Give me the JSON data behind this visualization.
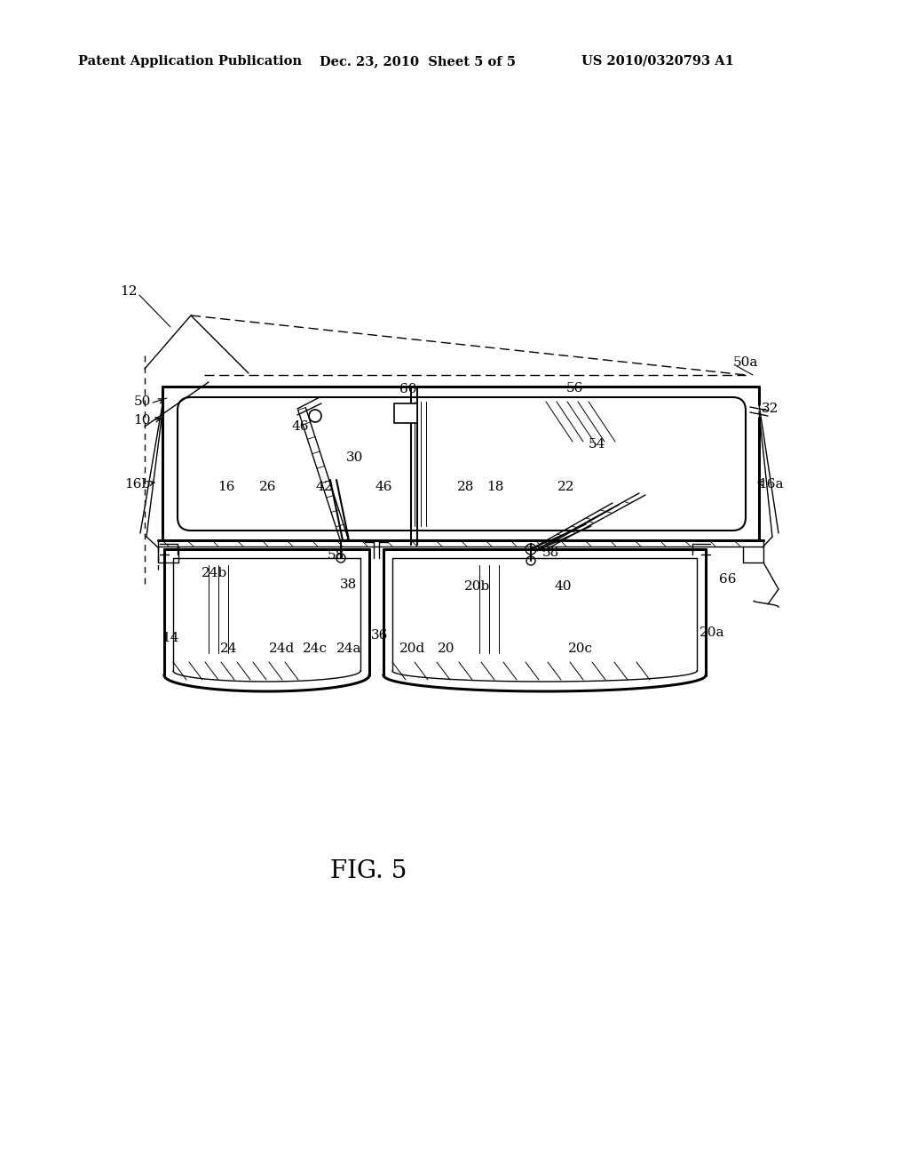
{
  "bg_color": "#ffffff",
  "header_left": "Patent Application Publication",
  "header_mid": "Dec. 23, 2010  Sheet 5 of 5",
  "header_right": "US 2010/0320793 A1",
  "fig_label": "FIG. 5",
  "line_color": "#000000",
  "label_fontsize": 11
}
